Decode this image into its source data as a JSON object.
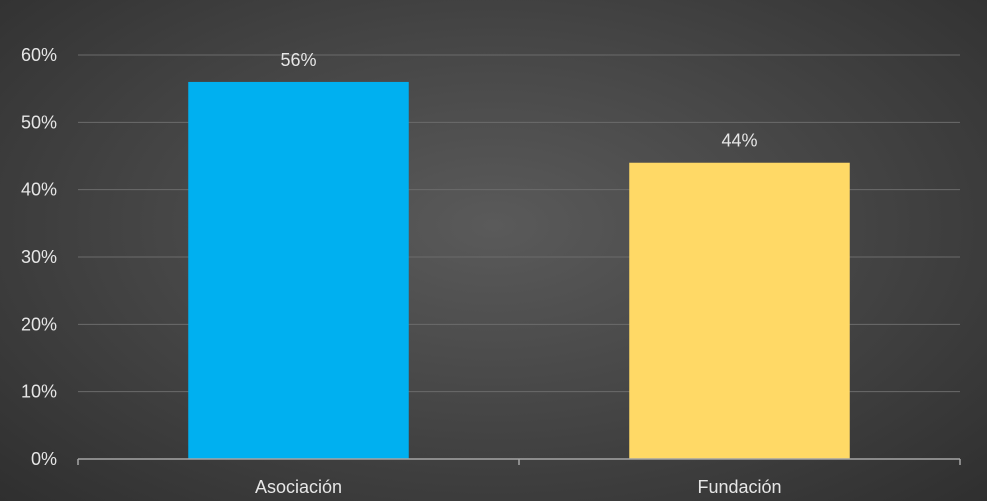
{
  "chart_data": {
    "type": "bar",
    "categories": [
      "Asociación",
      "Fundación"
    ],
    "values": [
      56,
      44
    ],
    "value_labels": [
      "56%",
      "44%"
    ],
    "bar_colors": [
      "#00b0f0",
      "#ffd966"
    ],
    "ylim": [
      0,
      60
    ],
    "yticks": [
      0,
      10,
      20,
      30,
      40,
      50,
      60
    ],
    "ytick_labels": [
      "0%",
      "10%",
      "20%",
      "30%",
      "40%",
      "50%",
      "60%"
    ],
    "grid": true,
    "title": "",
    "xlabel": "",
    "ylabel": ""
  },
  "colors": {
    "gridline": "#6b6b6b",
    "axis_line": "#a6a6a6",
    "text": "#e6e6e6"
  }
}
